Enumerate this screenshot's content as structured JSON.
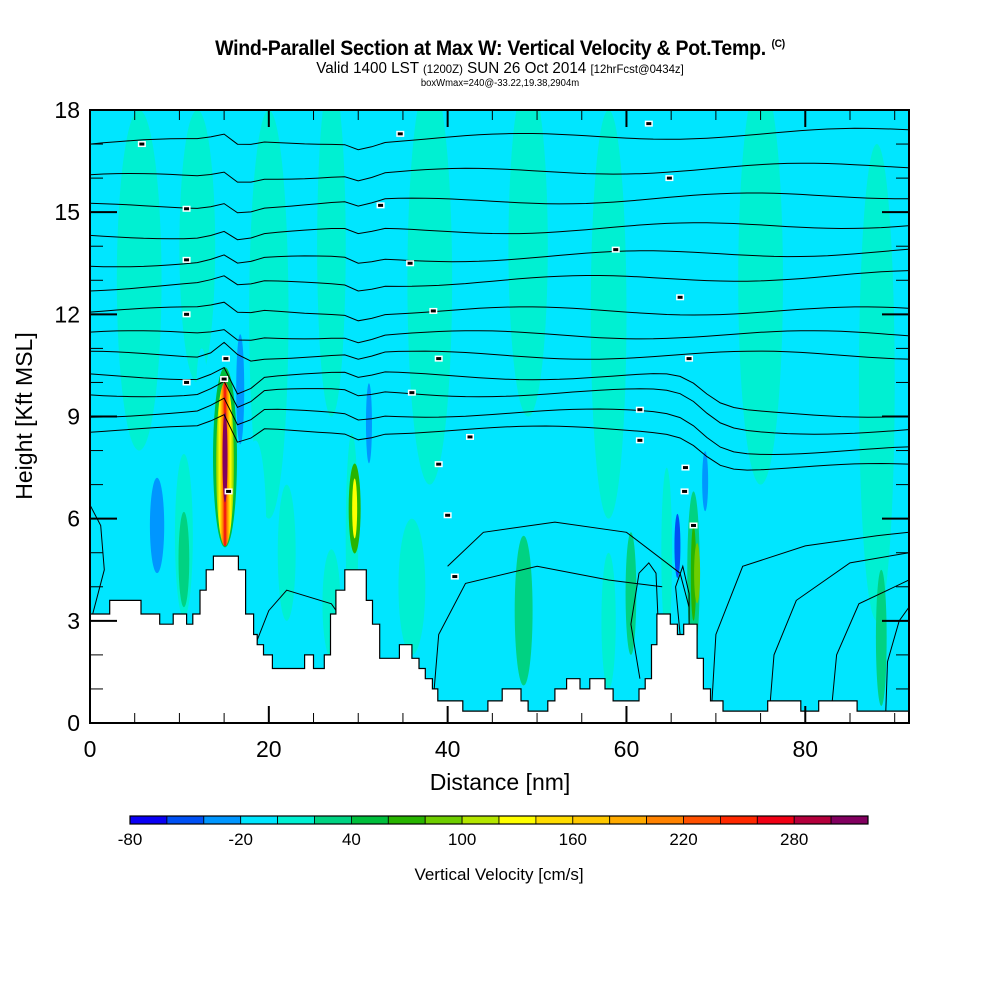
{
  "header": {
    "title": "Wind-Parallel Section at Max W: Vertical Velocity & Pot.Temp.",
    "copyright": "(C)",
    "subtitle_valid": "Valid 1400 LST",
    "subtitle_utc": "(1200Z)",
    "subtitle_date": "SUN 26 Oct 2014",
    "subtitle_forecast": "[12hrFcst@0434z]",
    "box_info": "boxWmax=240@-33.22,19.38,2904m"
  },
  "chart_data": {
    "type": "heatmap",
    "title": "Wind-Parallel Section at Max W: Vertical Velocity & Pot.Temp.",
    "xlabel": "Distance [nm]",
    "ylabel": "Height [Kft MSL]",
    "xlim": [
      0,
      91.6
    ],
    "ylim": [
      0,
      18
    ],
    "x_ticks": [
      "0",
      "20",
      "40",
      "60",
      "80"
    ],
    "x_tick_values": [
      0,
      20,
      40,
      60,
      80
    ],
    "y_ticks": [
      "0",
      "3",
      "6",
      "9",
      "12",
      "15",
      "18"
    ],
    "y_tick_values": [
      0,
      3,
      6,
      9,
      12,
      15,
      18
    ],
    "colorbar": {
      "title": "Vertical Velocity [cm/s]",
      "labels": [
        "-80",
        "-20",
        "40",
        "100",
        "160",
        "220",
        "280"
      ],
      "label_values": [
        -80,
        -20,
        40,
        100,
        160,
        220,
        280
      ],
      "min": -80,
      "step": 20,
      "colors": [
        "#0a00f5",
        "#0050f5",
        "#0096ff",
        "#00e6ff",
        "#00f0d2",
        "#00d282",
        "#00be3c",
        "#28b400",
        "#6ecd00",
        "#b4e600",
        "#ffff00",
        "#ffdc00",
        "#ffc800",
        "#ffaa00",
        "#ff8200",
        "#ff5000",
        "#ff2800",
        "#f00014",
        "#b4003c",
        "#82005f"
      ]
    },
    "background_value_range": [
      -20,
      20
    ],
    "max_w": {
      "value": 240,
      "x_nm": 15.0,
      "height_kft": 7.5
    },
    "terrain_kft": [
      [
        0,
        3.2
      ],
      [
        2.2,
        3.2
      ],
      [
        2.2,
        3.6
      ],
      [
        5.7,
        3.6
      ],
      [
        5.7,
        3.2
      ],
      [
        7.8,
        3.2
      ],
      [
        7.8,
        2.9
      ],
      [
        9.3,
        2.9
      ],
      [
        9.3,
        3.2
      ],
      [
        10.8,
        3.2
      ],
      [
        10.8,
        2.9
      ],
      [
        11.5,
        2.9
      ],
      [
        11.5,
        3.2
      ],
      [
        12.3,
        3.2
      ],
      [
        12.3,
        3.9
      ],
      [
        13.0,
        3.9
      ],
      [
        13.0,
        4.5
      ],
      [
        13.8,
        4.5
      ],
      [
        13.8,
        4.9
      ],
      [
        16.6,
        4.9
      ],
      [
        16.6,
        4.5
      ],
      [
        17.4,
        4.5
      ],
      [
        17.4,
        3.2
      ],
      [
        18.3,
        3.2
      ],
      [
        18.3,
        2.6
      ],
      [
        18.7,
        2.6
      ],
      [
        18.7,
        2.3
      ],
      [
        19.4,
        2.3
      ],
      [
        19.4,
        2.0
      ],
      [
        20.4,
        2.0
      ],
      [
        20.4,
        1.6
      ],
      [
        24.0,
        1.6
      ],
      [
        24.0,
        2.0
      ],
      [
        25.0,
        2.0
      ],
      [
        25.0,
        1.6
      ],
      [
        26.2,
        1.6
      ],
      [
        26.2,
        2.0
      ],
      [
        26.9,
        2.0
      ],
      [
        26.9,
        3.2
      ],
      [
        27.5,
        3.2
      ],
      [
        27.5,
        3.9
      ],
      [
        28.5,
        3.9
      ],
      [
        28.5,
        4.5
      ],
      [
        30.9,
        4.5
      ],
      [
        30.9,
        3.6
      ],
      [
        31.6,
        3.6
      ],
      [
        31.6,
        2.9
      ],
      [
        32.4,
        2.9
      ],
      [
        32.4,
        1.9
      ],
      [
        34.6,
        1.9
      ],
      [
        34.6,
        2.3
      ],
      [
        36.0,
        2.3
      ],
      [
        36.0,
        1.9
      ],
      [
        36.8,
        1.9
      ],
      [
        36.8,
        1.6
      ],
      [
        37.5,
        1.6
      ],
      [
        37.5,
        1.3
      ],
      [
        38.3,
        1.3
      ],
      [
        38.3,
        1.0
      ],
      [
        38.9,
        1.0
      ],
      [
        38.9,
        0.65
      ],
      [
        41.7,
        0.65
      ],
      [
        41.7,
        0.35
      ],
      [
        44.5,
        0.35
      ],
      [
        44.5,
        0.65
      ],
      [
        46.1,
        0.65
      ],
      [
        46.1,
        1.0
      ],
      [
        48.2,
        1.0
      ],
      [
        48.2,
        0.65
      ],
      [
        49.0,
        0.65
      ],
      [
        49.0,
        0.35
      ],
      [
        51.2,
        0.35
      ],
      [
        51.2,
        0.65
      ],
      [
        52.0,
        0.65
      ],
      [
        52.0,
        1.0
      ],
      [
        53.3,
        1.0
      ],
      [
        53.3,
        1.3
      ],
      [
        54.8,
        1.3
      ],
      [
        54.8,
        1.0
      ],
      [
        55.9,
        1.0
      ],
      [
        55.9,
        1.3
      ],
      [
        57.6,
        1.3
      ],
      [
        57.6,
        1.0
      ],
      [
        58.5,
        1.0
      ],
      [
        58.5,
        0.65
      ],
      [
        61.4,
        0.65
      ],
      [
        61.4,
        1.0
      ],
      [
        62.1,
        1.0
      ],
      [
        62.1,
        1.3
      ],
      [
        62.8,
        1.3
      ],
      [
        62.8,
        2.3
      ],
      [
        63.4,
        2.3
      ],
      [
        63.4,
        3.2
      ],
      [
        64.9,
        3.2
      ],
      [
        64.9,
        2.9
      ],
      [
        65.7,
        2.9
      ],
      [
        65.7,
        2.6
      ],
      [
        66.4,
        2.6
      ],
      [
        66.4,
        2.9
      ],
      [
        67.9,
        2.9
      ],
      [
        67.9,
        1.9
      ],
      [
        68.6,
        1.9
      ],
      [
        68.6,
        1.0
      ],
      [
        69.4,
        1.0
      ],
      [
        69.4,
        0.65
      ],
      [
        70.8,
        0.65
      ],
      [
        70.8,
        0.35
      ],
      [
        75.8,
        0.35
      ],
      [
        75.8,
        0.65
      ],
      [
        79.5,
        0.65
      ],
      [
        79.5,
        0.35
      ],
      [
        81.5,
        0.35
      ],
      [
        81.5,
        0.65
      ],
      [
        85.8,
        0.65
      ],
      [
        85.8,
        0.35
      ],
      [
        91.6,
        0.35
      ]
    ]
  }
}
